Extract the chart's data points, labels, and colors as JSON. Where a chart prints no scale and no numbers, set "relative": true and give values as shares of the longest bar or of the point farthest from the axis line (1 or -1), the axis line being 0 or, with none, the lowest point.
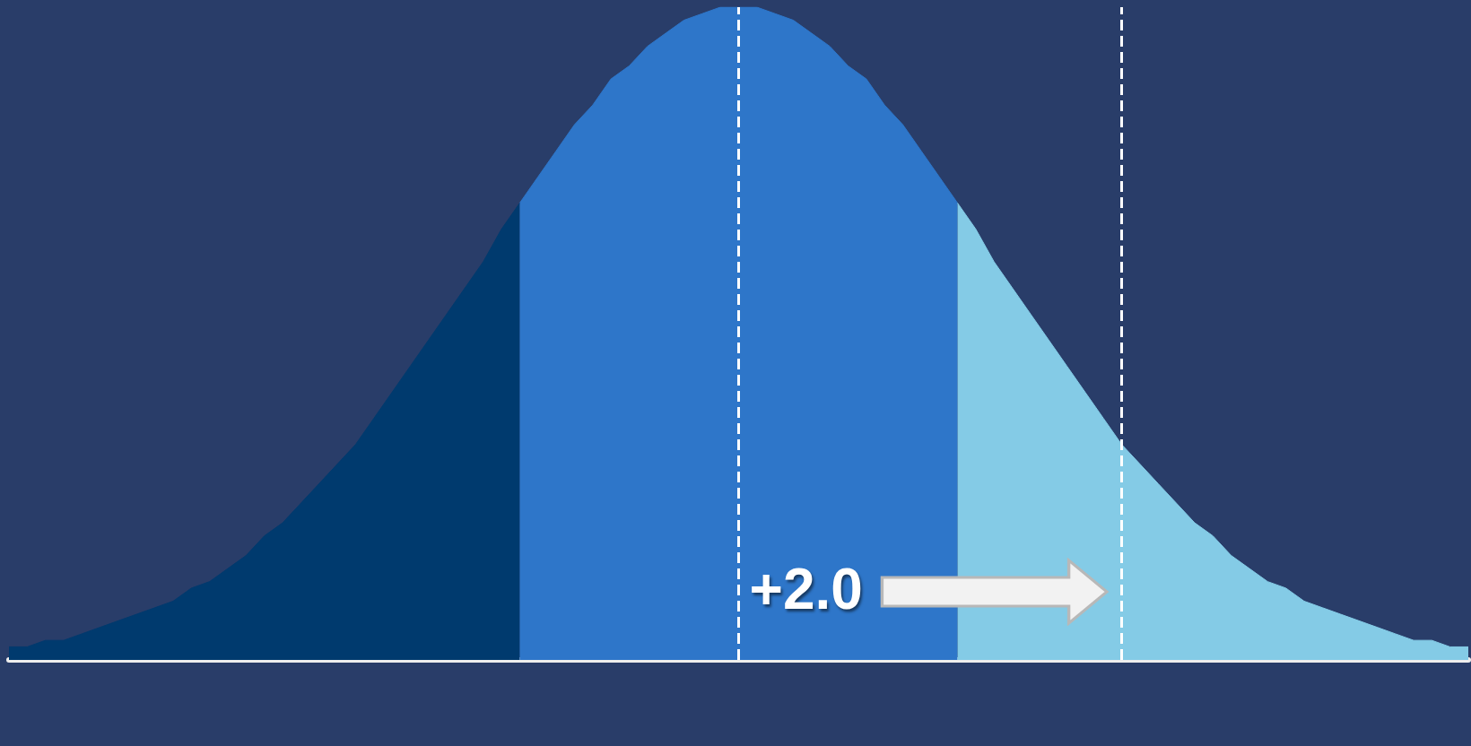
{
  "chart_data": {
    "type": "area",
    "relative": true,
    "marker": "none",
    "categories": [
      null,
      null,
      null,
      null,
      null,
      null,
      null,
      null,
      null,
      null,
      null,
      null,
      null,
      null,
      null,
      null,
      null,
      null,
      null,
      null,
      null,
      null,
      null,
      null,
      null,
      null,
      null,
      null,
      null,
      null,
      null,
      null,
      null,
      null,
      null,
      null,
      null,
      null,
      null,
      null,
      null,
      null,
      null,
      null,
      null,
      null,
      null,
      null,
      null,
      null,
      null,
      null,
      null,
      null,
      null,
      null,
      null,
      null,
      null,
      null,
      null,
      null,
      null,
      null,
      null,
      null,
      null,
      null,
      null,
      null,
      null,
      null,
      null,
      null,
      null,
      null,
      null,
      null,
      null,
      null,
      null
    ],
    "series": [
      {
        "color": "#003a6e",
        "values": [
          0.02,
          0.02,
          0.03,
          0.03,
          0.04,
          0.05,
          0.06,
          0.07,
          0.08,
          0.09,
          0.11,
          0.12,
          0.14,
          0.16,
          0.19,
          0.21,
          0.24,
          0.27,
          0.3,
          0.33,
          0.37,
          0.41,
          0.45,
          0.49,
          0.53,
          0.57,
          0.61,
          0.66,
          0.7,
          null,
          null,
          null,
          null,
          null,
          null,
          null,
          null,
          null,
          null,
          null,
          null,
          null,
          null,
          null,
          null,
          null,
          null,
          null,
          null,
          null,
          null,
          null,
          null,
          null,
          null,
          null,
          null,
          null,
          null,
          null,
          null,
          null,
          null,
          null,
          null,
          null,
          null,
          null,
          null,
          null,
          null,
          null,
          null,
          null,
          null,
          null,
          null,
          null,
          null,
          null,
          null
        ]
      },
      {
        "color": "#2e76c9",
        "values": [
          null,
          null,
          null,
          null,
          null,
          null,
          null,
          null,
          null,
          null,
          null,
          null,
          null,
          null,
          null,
          null,
          null,
          null,
          null,
          null,
          null,
          null,
          null,
          null,
          null,
          null,
          null,
          null,
          0.7,
          0.74,
          0.78,
          0.82,
          0.85,
          0.89,
          0.91,
          0.94,
          0.96,
          0.98,
          0.99,
          1,
          1,
          1,
          0.99,
          0.98,
          0.96,
          0.94,
          0.91,
          0.89,
          0.85,
          0.82,
          0.78,
          0.74,
          0.7,
          null,
          null,
          null,
          null,
          null,
          null,
          null,
          null,
          null,
          null,
          null,
          null,
          null,
          null,
          null,
          null,
          null,
          null,
          null,
          null,
          null,
          null,
          null,
          null,
          null,
          null,
          null,
          null
        ]
      },
      {
        "color": "#84cbe6",
        "values": [
          null,
          null,
          null,
          null,
          null,
          null,
          null,
          null,
          null,
          null,
          null,
          null,
          null,
          null,
          null,
          null,
          null,
          null,
          null,
          null,
          null,
          null,
          null,
          null,
          null,
          null,
          null,
          null,
          null,
          null,
          null,
          null,
          null,
          null,
          null,
          null,
          null,
          null,
          null,
          null,
          null,
          null,
          null,
          null,
          null,
          null,
          null,
          null,
          null,
          null,
          null,
          null,
          0.7,
          0.66,
          0.61,
          0.57,
          0.53,
          0.49,
          0.45,
          0.41,
          0.37,
          0.33,
          0.3,
          0.27,
          0.24,
          0.21,
          0.19,
          0.16,
          0.14,
          0.12,
          0.11,
          0.09,
          0.08,
          0.07,
          0.06,
          0.05,
          0.04,
          0.03,
          0.03,
          0.02,
          0.02
        ]
      }
    ],
    "annotations": [
      "+2.0"
    ]
  }
}
